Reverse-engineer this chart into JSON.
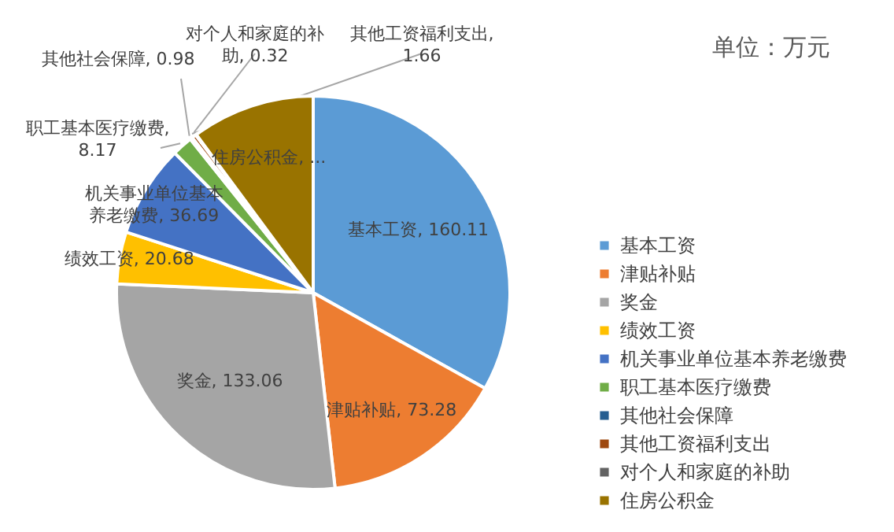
{
  "chart_data": {
    "type": "pie",
    "categories": [
      "基本工资",
      "津贴补贴",
      "奖金",
      "绩效工资",
      "机关事业单位基本养老缴费",
      "职工基本医疗缴费",
      "其他社会保障",
      "其他工资福利支出",
      "对个人和家庭的补助",
      "住房公积金"
    ],
    "values": [
      160.11,
      73.28,
      133.06,
      20.68,
      36.69,
      8.17,
      0.98,
      1.66,
      0.32,
      49
    ],
    "value_labels": [
      "基本工资, 160.11",
      "津贴补贴, 73.28",
      "奖金, 133.06",
      "绩效工资, 20.68",
      "机关事业单位基本养老缴费, 36.69",
      "职工基本医疗缴费, 8.17",
      "其他社会保障, 0.98",
      "其他工资福利支出, 1.66",
      "对个人和家庭的补助, 0.32",
      "住房公积金, ..."
    ],
    "colors": [
      "#5b9bd5",
      "#ed7d31",
      "#a5a5a5",
      "#ffc000",
      "#4472c4",
      "#70ad47",
      "#255e91",
      "#9e480e",
      "#636363",
      "#997300"
    ],
    "legend": "right",
    "annotations": [
      "单位：万元"
    ]
  }
}
